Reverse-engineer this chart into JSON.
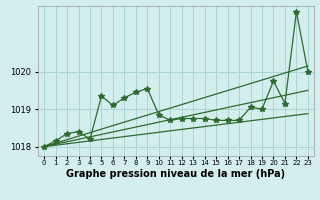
{
  "title": "Graphe pression niveau de la mer (hPa)",
  "bg_color": "#d4eeee",
  "grid_color": "#aad4d4",
  "line_color": "#2d6a2d",
  "hours": [
    0,
    1,
    2,
    3,
    4,
    5,
    6,
    7,
    8,
    9,
    10,
    11,
    12,
    13,
    14,
    15,
    16,
    17,
    18,
    19,
    20,
    21,
    22,
    23
  ],
  "x_labels": [
    "0",
    "1",
    "2",
    "3",
    "4",
    "5",
    "6",
    "7",
    "8",
    "9",
    "10",
    "11",
    "12",
    "13",
    "14",
    "15",
    "16",
    "17",
    "18",
    "19",
    "20",
    "21",
    "22",
    "23"
  ],
  "main_y": [
    1018.0,
    1018.15,
    1018.35,
    1018.4,
    1018.2,
    1019.35,
    1019.1,
    1019.3,
    1019.45,
    1019.55,
    1018.85,
    1018.7,
    1018.75,
    1018.75,
    1018.75,
    1018.7,
    1018.7,
    1018.7,
    1019.05,
    1019.0,
    1019.75,
    1019.15,
    1021.6,
    1020.0
  ],
  "upper_trend": [
    1018.0,
    1020.15
  ],
  "upper_trend_x": [
    0,
    23
  ],
  "mid_trend": [
    1018.0,
    1019.5
  ],
  "mid_trend_x": [
    0,
    23
  ],
  "lower_trend": [
    1018.0,
    1018.88
  ],
  "lower_trend_x": [
    0,
    23
  ],
  "ylim": [
    1017.75,
    1021.75
  ],
  "yticks": [
    1018,
    1019,
    1020
  ],
  "xlim": [
    -0.5,
    23.5
  ],
  "ylabel_fontsize": 6,
  "xlabel_fontsize": 7,
  "tick_fontsize": 5,
  "marker": "*",
  "markersize": 4
}
